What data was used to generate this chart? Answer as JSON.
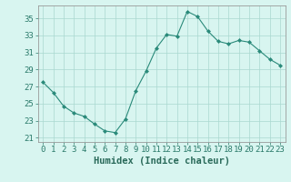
{
  "x": [
    0,
    1,
    2,
    3,
    4,
    5,
    6,
    7,
    8,
    9,
    10,
    11,
    12,
    13,
    14,
    15,
    16,
    17,
    18,
    19,
    20,
    21,
    22,
    23
  ],
  "y": [
    27.5,
    26.3,
    24.7,
    23.9,
    23.5,
    22.6,
    21.8,
    21.6,
    23.2,
    26.5,
    28.8,
    31.5,
    33.1,
    32.9,
    35.8,
    35.2,
    33.5,
    32.3,
    32.0,
    32.4,
    32.2,
    31.2,
    30.2,
    29.5
  ],
  "line_color": "#2a8a7a",
  "marker_color": "#2a8a7a",
  "bg_color": "#d8f5f0",
  "grid_color": "#aad8d0",
  "xlabel": "Humidex (Indice chaleur)",
  "yticks": [
    21,
    23,
    25,
    27,
    29,
    31,
    33,
    35
  ],
  "xtick_labels": [
    "0",
    "1",
    "2",
    "3",
    "4",
    "5",
    "6",
    "7",
    "8",
    "9",
    "10",
    "11",
    "12",
    "13",
    "14",
    "15",
    "16",
    "17",
    "18",
    "19",
    "20",
    "21",
    "22",
    "23"
  ],
  "ylim": [
    20.5,
    36.5
  ],
  "xlim": [
    -0.5,
    23.5
  ],
  "xlabel_color": "#2a6a5a",
  "tick_color": "#2a7a6a",
  "axis_color": "#999999",
  "tick_fontsize": 6.5,
  "label_fontsize": 7.5
}
